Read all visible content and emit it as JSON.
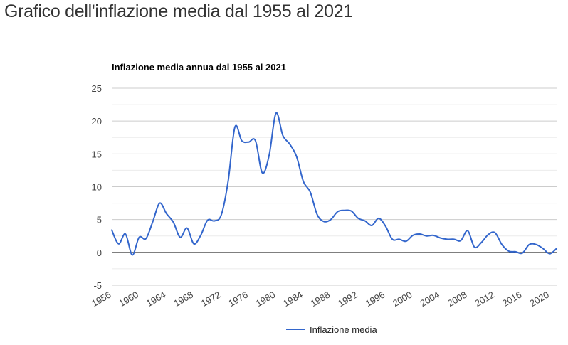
{
  "page": {
    "heading": "Grafico dell'inflazione media dal 1955 al 2021"
  },
  "chart_data": {
    "type": "line",
    "title": "Inflazione media annua dal 1955 al 2021",
    "xlabel": "",
    "ylabel": "",
    "xlim": [
      1956,
      2021
    ],
    "ylim": [
      -5,
      25
    ],
    "grid": true,
    "legend_position": "bottom",
    "y_ticks": [
      25,
      20,
      15,
      10,
      5,
      0,
      -5
    ],
    "x_ticks": [
      1956,
      1960,
      1964,
      1968,
      1972,
      1976,
      1980,
      1984,
      1988,
      1992,
      1996,
      2000,
      2004,
      2008,
      2012,
      2016,
      2020
    ],
    "series": [
      {
        "name": "Inflazione media",
        "color": "#3366cc",
        "x": [
          1956,
          1957,
          1958,
          1959,
          1960,
          1961,
          1962,
          1963,
          1964,
          1965,
          1966,
          1967,
          1968,
          1969,
          1970,
          1971,
          1972,
          1973,
          1974,
          1975,
          1976,
          1977,
          1978,
          1979,
          1980,
          1981,
          1982,
          1983,
          1984,
          1985,
          1986,
          1987,
          1988,
          1989,
          1990,
          1991,
          1992,
          1993,
          1994,
          1995,
          1996,
          1997,
          1998,
          1999,
          2000,
          2001,
          2002,
          2003,
          2004,
          2005,
          2006,
          2007,
          2008,
          2009,
          2010,
          2011,
          2012,
          2013,
          2014,
          2015,
          2016,
          2017,
          2018,
          2019,
          2020,
          2021
        ],
        "values": [
          3.4,
          1.3,
          2.8,
          -0.4,
          2.3,
          2.1,
          4.7,
          7.5,
          5.9,
          4.6,
          2.3,
          3.7,
          1.3,
          2.6,
          4.9,
          4.8,
          5.7,
          10.8,
          19.1,
          17.0,
          16.8,
          17.0,
          12.1,
          14.8,
          21.2,
          17.8,
          16.5,
          14.6,
          10.8,
          9.2,
          5.8,
          4.7,
          5.0,
          6.2,
          6.4,
          6.3,
          5.2,
          4.8,
          4.1,
          5.2,
          4.0,
          2.0,
          2.0,
          1.7,
          2.6,
          2.8,
          2.5,
          2.6,
          2.2,
          2.0,
          2.0,
          1.8,
          3.3,
          0.8,
          1.5,
          2.7,
          3.0,
          1.2,
          0.2,
          0.1,
          -0.1,
          1.2,
          1.2,
          0.6,
          -0.2,
          0.6
        ]
      }
    ]
  }
}
